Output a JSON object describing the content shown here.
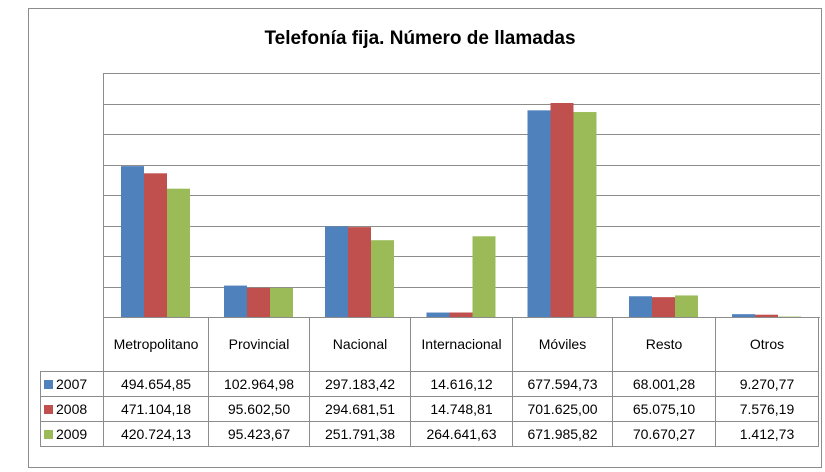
{
  "chart_data": {
    "type": "bar",
    "title": "Telefonía fija. Número de llamadas",
    "categories": [
      "Metropolitano",
      "Provincial",
      "Nacional",
      "Internacional",
      "Móviles",
      "Resto",
      "Otros"
    ],
    "series": [
      {
        "name": "2007",
        "color": "#4f81bd",
        "values": [
          494654.85,
          102964.98,
          297183.42,
          14616.12,
          677594.73,
          68001.28,
          9270.77
        ],
        "value_labels": [
          "494.654,85",
          "102.964,98",
          "297.183,42",
          "14.616,12",
          "677.594,73",
          "68.001,28",
          "9.270,77"
        ]
      },
      {
        "name": "2008",
        "color": "#c0504d",
        "values": [
          471104.18,
          95602.5,
          294681.51,
          14748.81,
          701625.0,
          65075.1,
          7576.19
        ],
        "value_labels": [
          "471.104,18",
          "95.602,50",
          "294.681,51",
          "14.748,81",
          "701.625,00",
          "65.075,10",
          "7.576,19"
        ]
      },
      {
        "name": "2009",
        "color": "#9bbb59",
        "values": [
          420724.13,
          95423.67,
          251791.38,
          264641.63,
          671985.82,
          70670.27,
          1412.73
        ],
        "value_labels": [
          "420.724,13",
          "95.423,67",
          "251.791,38",
          "264.641,63",
          "671.985,82",
          "70.670,27",
          "1.412,73"
        ]
      }
    ],
    "ylim": [
      0,
      800000
    ],
    "yticks": [
      0,
      100000,
      200000,
      300000,
      400000,
      500000,
      600000,
      700000,
      800000
    ],
    "grid": true
  }
}
